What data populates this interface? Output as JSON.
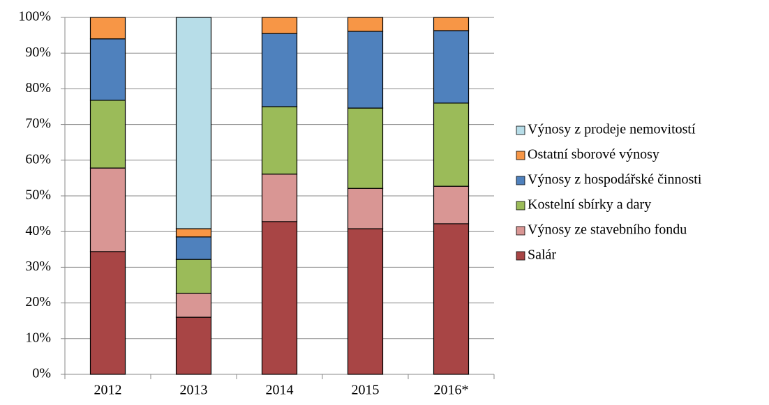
{
  "chart_data": {
    "type": "stacked_bar",
    "categories": [
      "2012",
      "2013",
      "2014",
      "2015",
      "2016*"
    ],
    "series": [
      {
        "name": "Salár",
        "color": "#a84545",
        "values": [
          34.4,
          16.0,
          42.8,
          40.8,
          42.2
        ]
      },
      {
        "name": "Výnosy ze stavebního fondu",
        "color": "#d99694",
        "values": [
          23.4,
          6.7,
          13.3,
          11.3,
          10.5
        ]
      },
      {
        "name": "Kostelní sbírky a dary",
        "color": "#9bbb59",
        "values": [
          19.0,
          9.5,
          18.9,
          22.5,
          23.3
        ]
      },
      {
        "name": "Výnosy z hospodářské činnosti",
        "color": "#4f81bd",
        "values": [
          17.2,
          6.3,
          20.5,
          21.5,
          20.3
        ]
      },
      {
        "name": "Ostatní sborové výnosy",
        "color": "#f79646",
        "values": [
          6.0,
          2.3,
          4.5,
          3.9,
          3.7
        ]
      },
      {
        "name": "Výnosy z prodeje nemovitostí",
        "color": "#b7dde8",
        "values": [
          0,
          59.2,
          0,
          0,
          0
        ]
      }
    ],
    "ylim": [
      0,
      100
    ],
    "yticks": [
      {
        "value": 0,
        "label": "0%"
      },
      {
        "value": 10,
        "label": "10%"
      },
      {
        "value": 20,
        "label": "20%"
      },
      {
        "value": 30,
        "label": "30%"
      },
      {
        "value": 40,
        "label": "40%"
      },
      {
        "value": 50,
        "label": "50%"
      },
      {
        "value": 60,
        "label": "60%"
      },
      {
        "value": 70,
        "label": "70%"
      },
      {
        "value": 80,
        "label": "80%"
      },
      {
        "value": 90,
        "label": "90%"
      },
      {
        "value": 100,
        "label": "100%"
      }
    ],
    "grid": true
  }
}
